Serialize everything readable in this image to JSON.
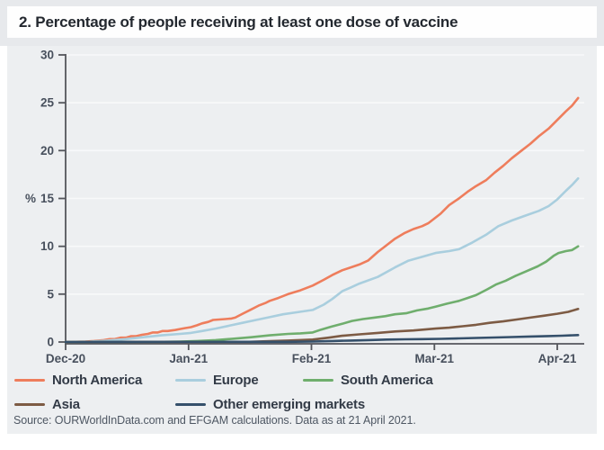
{
  "figure": {
    "title": "2. Percentage of people receiving at least one dose of vaccine"
  },
  "chart_data": {
    "type": "line",
    "title": "2. Percentage of people receiving at least one dose of vaccine",
    "xlabel": "",
    "ylabel": "%",
    "ylim": [
      0,
      30
    ],
    "yticks": [
      0,
      5,
      10,
      15,
      20,
      25,
      30
    ],
    "x_axis": {
      "unit": "months since Dec-2020",
      "tick_labels": [
        "Dec-20",
        "Jan-21",
        "Feb-21",
        "Mar-21",
        "Apr-21"
      ],
      "tick_positions": [
        0,
        1,
        2,
        3,
        4
      ],
      "x_end": 4.17
    },
    "grid": "horizontal",
    "legend_position": "bottom",
    "axis_color": "#54565c",
    "grid_color": "#f8f9fa",
    "tick_label_color": "#48505d",
    "panel_background": "#edeff1",
    "series": [
      {
        "name": "North America",
        "color": "#ee7d5c",
        "points": [
          [
            0,
            0
          ],
          [
            0.16,
            0.05
          ],
          [
            0.23,
            0.1
          ],
          [
            0.31,
            0.2
          ],
          [
            0.36,
            0.3
          ],
          [
            0.4,
            0.3
          ],
          [
            0.45,
            0.45
          ],
          [
            0.49,
            0.45
          ],
          [
            0.53,
            0.6
          ],
          [
            0.57,
            0.6
          ],
          [
            0.62,
            0.75
          ],
          [
            0.67,
            0.85
          ],
          [
            0.71,
            1.0
          ],
          [
            0.75,
            1.0
          ],
          [
            0.79,
            1.15
          ],
          [
            0.83,
            1.15
          ],
          [
            0.89,
            1.25
          ],
          [
            0.93,
            1.35
          ],
          [
            0.97,
            1.45
          ],
          [
            1.02,
            1.55
          ],
          [
            1.07,
            1.75
          ],
          [
            1.11,
            1.95
          ],
          [
            1.16,
            2.1
          ],
          [
            1.2,
            2.3
          ],
          [
            1.25,
            2.35
          ],
          [
            1.3,
            2.4
          ],
          [
            1.35,
            2.45
          ],
          [
            1.38,
            2.55
          ],
          [
            1.44,
            2.95
          ],
          [
            1.51,
            3.4
          ],
          [
            1.57,
            3.8
          ],
          [
            1.63,
            4.1
          ],
          [
            1.66,
            4.3
          ],
          [
            1.73,
            4.6
          ],
          [
            1.81,
            5.0
          ],
          [
            1.91,
            5.4
          ],
          [
            2.01,
            5.9
          ],
          [
            2.1,
            6.5
          ],
          [
            2.17,
            7.0
          ],
          [
            2.25,
            7.5
          ],
          [
            2.32,
            7.8
          ],
          [
            2.39,
            8.1
          ],
          [
            2.46,
            8.5
          ],
          [
            2.54,
            9.4
          ],
          [
            2.61,
            10.1
          ],
          [
            2.68,
            10.8
          ],
          [
            2.76,
            11.4
          ],
          [
            2.83,
            11.8
          ],
          [
            2.9,
            12.1
          ],
          [
            2.95,
            12.4
          ],
          [
            3.05,
            13.4
          ],
          [
            3.12,
            14.3
          ],
          [
            3.2,
            15.0
          ],
          [
            3.27,
            15.7
          ],
          [
            3.34,
            16.3
          ],
          [
            3.42,
            16.9
          ],
          [
            3.49,
            17.7
          ],
          [
            3.56,
            18.4
          ],
          [
            3.63,
            19.2
          ],
          [
            3.71,
            20.0
          ],
          [
            3.78,
            20.7
          ],
          [
            3.85,
            21.5
          ],
          [
            3.93,
            22.3
          ],
          [
            4.0,
            23.2
          ],
          [
            4.07,
            24.1
          ],
          [
            4.12,
            24.7
          ],
          [
            4.17,
            25.5
          ]
        ]
      },
      {
        "name": "Europe",
        "color": "#a9cede",
        "points": [
          [
            0,
            0
          ],
          [
            0.2,
            0.05
          ],
          [
            0.34,
            0.15
          ],
          [
            0.49,
            0.3
          ],
          [
            0.63,
            0.5
          ],
          [
            0.78,
            0.7
          ],
          [
            0.93,
            0.85
          ],
          [
            1.02,
            0.95
          ],
          [
            1.11,
            1.15
          ],
          [
            1.22,
            1.4
          ],
          [
            1.33,
            1.7
          ],
          [
            1.44,
            2.0
          ],
          [
            1.55,
            2.3
          ],
          [
            1.66,
            2.6
          ],
          [
            1.77,
            2.9
          ],
          [
            1.88,
            3.1
          ],
          [
            2.01,
            3.35
          ],
          [
            2.1,
            3.9
          ],
          [
            2.17,
            4.5
          ],
          [
            2.25,
            5.3
          ],
          [
            2.32,
            5.7
          ],
          [
            2.39,
            6.1
          ],
          [
            2.54,
            6.8
          ],
          [
            2.68,
            7.8
          ],
          [
            2.79,
            8.5
          ],
          [
            2.9,
            8.9
          ],
          [
            3.01,
            9.3
          ],
          [
            3.12,
            9.5
          ],
          [
            3.2,
            9.7
          ],
          [
            3.31,
            10.4
          ],
          [
            3.42,
            11.2
          ],
          [
            3.52,
            12.1
          ],
          [
            3.63,
            12.7
          ],
          [
            3.74,
            13.2
          ],
          [
            3.85,
            13.7
          ],
          [
            3.93,
            14.2
          ],
          [
            4.0,
            14.9
          ],
          [
            4.07,
            15.8
          ],
          [
            4.12,
            16.4
          ],
          [
            4.17,
            17.1
          ]
        ]
      },
      {
        "name": "South America",
        "color": "#6fae6d",
        "points": [
          [
            0,
            0
          ],
          [
            0.8,
            0.02
          ],
          [
            0.93,
            0.05
          ],
          [
            1.07,
            0.1
          ],
          [
            1.22,
            0.2
          ],
          [
            1.37,
            0.35
          ],
          [
            1.51,
            0.5
          ],
          [
            1.66,
            0.7
          ],
          [
            1.81,
            0.85
          ],
          [
            1.91,
            0.9
          ],
          [
            2.01,
            1.0
          ],
          [
            2.08,
            1.3
          ],
          [
            2.16,
            1.6
          ],
          [
            2.25,
            1.9
          ],
          [
            2.33,
            2.2
          ],
          [
            2.42,
            2.4
          ],
          [
            2.51,
            2.55
          ],
          [
            2.6,
            2.7
          ],
          [
            2.68,
            2.9
          ],
          [
            2.77,
            3.0
          ],
          [
            2.86,
            3.3
          ],
          [
            2.95,
            3.5
          ],
          [
            3.01,
            3.7
          ],
          [
            3.1,
            4.0
          ],
          [
            3.2,
            4.3
          ],
          [
            3.27,
            4.6
          ],
          [
            3.34,
            4.9
          ],
          [
            3.43,
            5.5
          ],
          [
            3.5,
            6.0
          ],
          [
            3.58,
            6.4
          ],
          [
            3.66,
            6.9
          ],
          [
            3.75,
            7.4
          ],
          [
            3.84,
            7.9
          ],
          [
            3.91,
            8.4
          ],
          [
            3.97,
            9.0
          ],
          [
            4.01,
            9.3
          ],
          [
            4.07,
            9.5
          ],
          [
            4.12,
            9.6
          ],
          [
            4.17,
            10.0
          ]
        ]
      },
      {
        "name": "Asia",
        "color": "#7d5b44",
        "points": [
          [
            0,
            0
          ],
          [
            1.5,
            0.02
          ],
          [
            1.66,
            0.08
          ],
          [
            1.81,
            0.15
          ],
          [
            2.01,
            0.25
          ],
          [
            2.14,
            0.45
          ],
          [
            2.25,
            0.65
          ],
          [
            2.39,
            0.8
          ],
          [
            2.54,
            0.95
          ],
          [
            2.68,
            1.1
          ],
          [
            2.83,
            1.2
          ],
          [
            3.01,
            1.4
          ],
          [
            3.12,
            1.5
          ],
          [
            3.23,
            1.65
          ],
          [
            3.34,
            1.8
          ],
          [
            3.45,
            2.0
          ],
          [
            3.56,
            2.15
          ],
          [
            3.67,
            2.35
          ],
          [
            3.78,
            2.55
          ],
          [
            3.89,
            2.75
          ],
          [
            4.0,
            2.95
          ],
          [
            4.09,
            3.15
          ],
          [
            4.17,
            3.45
          ]
        ]
      },
      {
        "name": "Other emerging markets",
        "color": "#35506b",
        "points": [
          [
            0,
            0
          ],
          [
            1.8,
            0.02
          ],
          [
            2.01,
            0.05
          ],
          [
            2.17,
            0.1
          ],
          [
            2.32,
            0.15
          ],
          [
            2.46,
            0.2
          ],
          [
            2.61,
            0.25
          ],
          [
            2.76,
            0.28
          ],
          [
            2.9,
            0.3
          ],
          [
            3.05,
            0.33
          ],
          [
            3.2,
            0.38
          ],
          [
            3.34,
            0.42
          ],
          [
            3.49,
            0.47
          ],
          [
            3.63,
            0.52
          ],
          [
            3.78,
            0.57
          ],
          [
            3.93,
            0.62
          ],
          [
            4.04,
            0.66
          ],
          [
            4.17,
            0.72
          ]
        ]
      }
    ],
    "source": "Source: OURWorldInData.com and EFGAM calculations. Data as at 21 April 2021."
  }
}
